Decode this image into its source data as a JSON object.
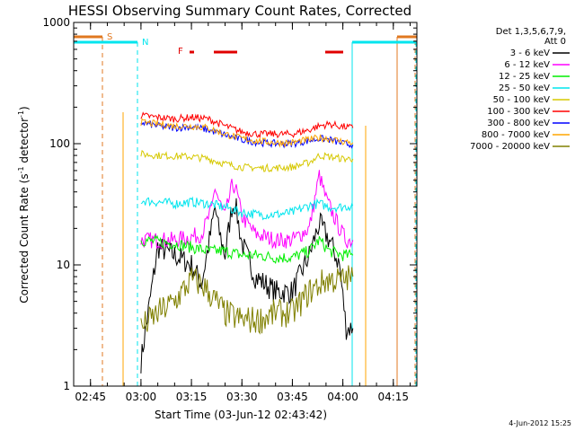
{
  "chart_data": {
    "type": "line",
    "title": "HESSI Observing Summary Count Rates, Corrected",
    "xlabel": "Start Time (03-Jun-12 02:43:42)",
    "ylabel": "Corrected Count Rate (s",
    "ylabel_sup1": "-1",
    "ylabel_mid": " detector",
    "ylabel_sup2": "-1",
    "ylabel_end": ")",
    "y_scale": "log",
    "ylim": [
      1,
      1000
    ],
    "xlim": [
      "02:40",
      "04:22"
    ],
    "x_ticks": [
      "02:45",
      "03:00",
      "03:15",
      "03:30",
      "03:45",
      "04:00",
      "04:15"
    ],
    "y_ticks": [
      "1",
      "10",
      "100",
      "1000"
    ],
    "footer_date": "4-Jun-2012 15:25",
    "legend": {
      "header1": "Det 1,3,5,6,7,9,",
      "header2": "Att 0"
    },
    "flags": [
      {
        "label": "S",
        "color": "#e07820"
      },
      {
        "label": "N",
        "color": "#00e5ee"
      },
      {
        "label": "F",
        "color": "#e00000"
      }
    ],
    "series": [
      {
        "name": "3 - 6 keV",
        "color": "#000000",
        "points": [
          [
            "03:00",
            1.6
          ],
          [
            "03:05",
            14
          ],
          [
            "03:10",
            12
          ],
          [
            "03:15",
            10
          ],
          [
            "03:18",
            7
          ],
          [
            "03:21",
            20
          ],
          [
            "03:22",
            30
          ],
          [
            "03:23",
            20
          ],
          [
            "03:25",
            12
          ],
          [
            "03:27",
            30
          ],
          [
            "03:28",
            32
          ],
          [
            "03:30",
            15
          ],
          [
            "03:34",
            8
          ],
          [
            "03:40",
            6
          ],
          [
            "03:45",
            6
          ],
          [
            "03:50",
            12
          ],
          [
            "03:53",
            22
          ],
          [
            "03:56",
            16
          ],
          [
            "03:59",
            10
          ],
          [
            "04:01",
            3
          ],
          [
            "04:03",
            3
          ]
        ]
      },
      {
        "name": "6 - 12 keV",
        "color": "#ff00ff",
        "points": [
          [
            "03:00",
            16
          ],
          [
            "03:05",
            16
          ],
          [
            "03:10",
            16
          ],
          [
            "03:15",
            17
          ],
          [
            "03:18",
            18
          ],
          [
            "03:21",
            28
          ],
          [
            "03:22",
            44
          ],
          [
            "03:23",
            35
          ],
          [
            "03:25",
            25
          ],
          [
            "03:27",
            44
          ],
          [
            "03:28",
            45
          ],
          [
            "03:30",
            25
          ],
          [
            "03:34",
            18
          ],
          [
            "03:40",
            16
          ],
          [
            "03:45",
            16
          ],
          [
            "03:50",
            20
          ],
          [
            "03:53",
            55
          ],
          [
            "03:55",
            35
          ],
          [
            "03:59",
            20
          ],
          [
            "04:01",
            16
          ],
          [
            "04:03",
            16
          ]
        ]
      },
      {
        "name": "12 - 25 keV",
        "color": "#00ee00",
        "points": [
          [
            "03:00",
            16
          ],
          [
            "03:10",
            15
          ],
          [
            "03:15",
            14
          ],
          [
            "03:20",
            13
          ],
          [
            "03:25",
            13
          ],
          [
            "03:30",
            12
          ],
          [
            "03:35",
            12
          ],
          [
            "03:40",
            11.5
          ],
          [
            "03:45",
            11.5
          ],
          [
            "03:50",
            13
          ],
          [
            "03:53",
            16
          ],
          [
            "03:56",
            13
          ],
          [
            "04:00",
            12
          ],
          [
            "04:03",
            12
          ]
        ]
      },
      {
        "name": "25 - 50 keV",
        "color": "#00e5ee",
        "points": [
          [
            "03:00",
            34
          ],
          [
            "03:10",
            32
          ],
          [
            "03:15",
            33
          ],
          [
            "03:20",
            32
          ],
          [
            "03:25",
            30
          ],
          [
            "03:30",
            27
          ],
          [
            "03:35",
            26
          ],
          [
            "03:40",
            26
          ],
          [
            "03:45",
            27
          ],
          [
            "03:50",
            31
          ],
          [
            "03:53",
            32
          ],
          [
            "03:56",
            30
          ],
          [
            "04:00",
            30
          ],
          [
            "04:03",
            31
          ]
        ]
      },
      {
        "name": "50 - 100 keV",
        "color": "#d6c800",
        "points": [
          [
            "03:00",
            82
          ],
          [
            "03:05",
            80
          ],
          [
            "03:10",
            79
          ],
          [
            "03:15",
            78
          ],
          [
            "03:20",
            75
          ],
          [
            "03:25",
            68
          ],
          [
            "03:30",
            64
          ],
          [
            "03:35",
            63
          ],
          [
            "03:40",
            63
          ],
          [
            "03:45",
            64
          ],
          [
            "03:50",
            70
          ],
          [
            "03:53",
            80
          ],
          [
            "03:56",
            78
          ],
          [
            "04:00",
            75
          ],
          [
            "04:03",
            75
          ]
        ]
      },
      {
        "name": "100 - 300 keV",
        "color": "#ff0000",
        "points": [
          [
            "03:00",
            170
          ],
          [
            "03:05",
            165
          ],
          [
            "03:10",
            160
          ],
          [
            "03:15",
            165
          ],
          [
            "03:20",
            160
          ],
          [
            "03:25",
            140
          ],
          [
            "03:30",
            125
          ],
          [
            "03:35",
            120
          ],
          [
            "03:40",
            120
          ],
          [
            "03:45",
            120
          ],
          [
            "03:50",
            130
          ],
          [
            "03:53",
            140
          ],
          [
            "03:56",
            145
          ],
          [
            "04:00",
            138
          ],
          [
            "04:03",
            135
          ]
        ]
      },
      {
        "name": "300 - 800 keV",
        "color": "#0000ff",
        "points": [
          [
            "03:00",
            150
          ],
          [
            "03:05",
            140
          ],
          [
            "03:10",
            135
          ],
          [
            "03:15",
            138
          ],
          [
            "03:20",
            130
          ],
          [
            "03:25",
            118
          ],
          [
            "03:30",
            108
          ],
          [
            "03:35",
            102
          ],
          [
            "03:40",
            100
          ],
          [
            "03:45",
            100
          ],
          [
            "03:50",
            106
          ],
          [
            "03:53",
            110
          ],
          [
            "03:56",
            108
          ],
          [
            "04:00",
            100
          ],
          [
            "04:03",
            98
          ]
        ]
      },
      {
        "name": "800 - 7000 keV",
        "color": "#ffa500",
        "points": [
          [
            "03:00",
            150
          ],
          [
            "03:10",
            140
          ],
          [
            "03:15",
            140
          ],
          [
            "03:20",
            135
          ],
          [
            "03:25",
            120
          ],
          [
            "03:30",
            110
          ],
          [
            "03:35",
            105
          ],
          [
            "03:40",
            102
          ],
          [
            "03:45",
            102
          ],
          [
            "03:50",
            108
          ],
          [
            "03:53",
            112
          ],
          [
            "03:56",
            110
          ],
          [
            "04:00",
            104
          ],
          [
            "04:03",
            102
          ]
        ]
      },
      {
        "name": "7000 - 20000 keV",
        "color": "#808000",
        "points": [
          [
            "03:00",
            3
          ],
          [
            "03:05",
            4
          ],
          [
            "03:10",
            5
          ],
          [
            "03:15",
            7.5
          ],
          [
            "03:18",
            7
          ],
          [
            "03:20",
            6
          ],
          [
            "03:25",
            4
          ],
          [
            "03:30",
            3.5
          ],
          [
            "03:35",
            3.5
          ],
          [
            "03:40",
            4
          ],
          [
            "03:45",
            4
          ],
          [
            "03:50",
            6
          ],
          [
            "03:55",
            7.5
          ],
          [
            "04:00",
            7.5
          ],
          [
            "04:03",
            8
          ]
        ]
      }
    ]
  }
}
